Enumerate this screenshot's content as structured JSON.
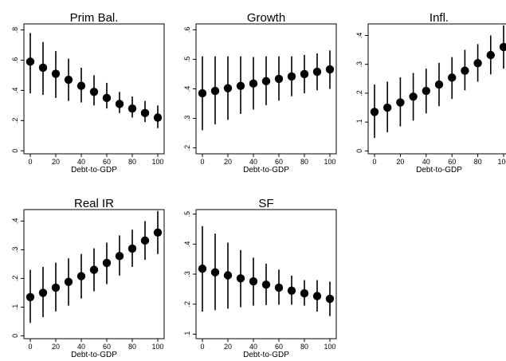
{
  "chart_data": [
    {
      "type": "scatter",
      "title": "Prim Bal.",
      "xlabel": "Debt-to-GDP",
      "ylabel": "",
      "x": [
        0,
        10,
        20,
        30,
        40,
        50,
        60,
        70,
        80,
        90,
        100
      ],
      "xticks": [
        0,
        20,
        40,
        60,
        80,
        100
      ],
      "ylim": [
        -0.02,
        0.84
      ],
      "yticks": [
        0,
        0.2,
        0.4,
        0.6,
        0.8
      ],
      "ytick_labels": [
        "0",
        ".2",
        ".4",
        ".6",
        ".8"
      ],
      "values": [
        0.59,
        0.55,
        0.51,
        0.47,
        0.43,
        0.39,
        0.35,
        0.31,
        0.28,
        0.25,
        0.22
      ],
      "ci_low": [
        0.38,
        0.37,
        0.35,
        0.33,
        0.32,
        0.3,
        0.28,
        0.25,
        0.22,
        0.19,
        0.15
      ],
      "ci_high": [
        0.78,
        0.72,
        0.66,
        0.61,
        0.55,
        0.5,
        0.45,
        0.39,
        0.36,
        0.33,
        0.3
      ]
    },
    {
      "type": "scatter",
      "title": "Growth",
      "xlabel": "Debt-to-GDP",
      "ylabel": "",
      "x": [
        0,
        10,
        20,
        30,
        40,
        50,
        60,
        70,
        80,
        90,
        100
      ],
      "xticks": [
        0,
        20,
        40,
        60,
        80,
        100
      ],
      "ylim": [
        0.18,
        0.62
      ],
      "yticks": [
        0.2,
        0.3,
        0.4,
        0.5,
        0.6
      ],
      "ytick_labels": [
        ".2",
        ".3",
        ".4",
        ".5",
        ".6"
      ],
      "values": [
        0.385,
        0.393,
        0.402,
        0.41,
        0.418,
        0.426,
        0.434,
        0.442,
        0.45,
        0.458,
        0.466
      ],
      "ci_low": [
        0.26,
        0.28,
        0.295,
        0.315,
        0.33,
        0.345,
        0.36,
        0.375,
        0.385,
        0.395,
        0.4
      ],
      "ci_high": [
        0.51,
        0.51,
        0.51,
        0.51,
        0.508,
        0.51,
        0.51,
        0.51,
        0.515,
        0.52,
        0.53
      ]
    },
    {
      "type": "scatter",
      "title": "Infl.",
      "xlabel": "Debt-to-GDP",
      "ylabel": "",
      "x": [
        0,
        10,
        20,
        30,
        40,
        50,
        60,
        70,
        80,
        90,
        100
      ],
      "xticks": [
        0,
        20,
        40,
        60,
        80,
        100
      ],
      "ylim": [
        -0.01,
        0.44
      ],
      "yticks": [
        0,
        0.1,
        0.2,
        0.3,
        0.4
      ],
      "ytick_labels": [
        "0",
        ".1",
        ".2",
        ".3",
        ".4"
      ],
      "values": [
        0.135,
        0.15,
        0.168,
        0.188,
        0.208,
        0.23,
        0.254,
        0.278,
        0.304,
        0.332,
        0.36
      ],
      "ci_low": [
        0.045,
        0.065,
        0.085,
        0.105,
        0.13,
        0.155,
        0.18,
        0.21,
        0.24,
        0.265,
        0.285
      ],
      "ci_high": [
        0.23,
        0.24,
        0.255,
        0.27,
        0.285,
        0.305,
        0.325,
        0.35,
        0.37,
        0.4,
        0.435
      ]
    },
    {
      "type": "scatter",
      "title": "Real IR",
      "xlabel": "Debt-to-GDP",
      "ylabel": "",
      "x": [
        0,
        10,
        20,
        30,
        40,
        50,
        60,
        70,
        80,
        90,
        100
      ],
      "xticks": [
        0,
        20,
        40,
        60,
        80,
        100
      ],
      "ylim": [
        -0.01,
        0.44
      ],
      "yticks": [
        0,
        0.1,
        0.2,
        0.3,
        0.4
      ],
      "ytick_labels": [
        "0",
        ".1",
        ".2",
        ".3",
        ".4"
      ],
      "values": [
        0.135,
        0.15,
        0.168,
        0.188,
        0.208,
        0.23,
        0.254,
        0.278,
        0.304,
        0.332,
        0.36
      ],
      "ci_low": [
        0.045,
        0.065,
        0.085,
        0.105,
        0.13,
        0.155,
        0.18,
        0.21,
        0.24,
        0.265,
        0.285
      ],
      "ci_high": [
        0.23,
        0.24,
        0.255,
        0.27,
        0.285,
        0.305,
        0.325,
        0.35,
        0.37,
        0.4,
        0.435
      ]
    },
    {
      "type": "scatter",
      "title": "SF",
      "xlabel": "Debt-to-GDP",
      "ylabel": "",
      "x": [
        0,
        10,
        20,
        30,
        40,
        50,
        60,
        70,
        80,
        90,
        100
      ],
      "xticks": [
        0,
        20,
        40,
        60,
        80,
        100
      ],
      "ylim": [
        0.085,
        0.515
      ],
      "yticks": [
        0.1,
        0.2,
        0.3,
        0.4,
        0.5
      ],
      "ytick_labels": [
        ".1",
        ".2",
        ".3",
        ".4",
        ".5"
      ],
      "values": [
        0.318,
        0.306,
        0.296,
        0.286,
        0.276,
        0.265,
        0.255,
        0.245,
        0.236,
        0.227,
        0.218
      ],
      "ci_low": [
        0.175,
        0.18,
        0.185,
        0.19,
        0.195,
        0.197,
        0.198,
        0.198,
        0.195,
        0.175,
        0.16
      ],
      "ci_high": [
        0.46,
        0.435,
        0.405,
        0.38,
        0.355,
        0.335,
        0.315,
        0.295,
        0.28,
        0.28,
        0.275
      ]
    }
  ],
  "colors": {
    "marker": "#000000",
    "ci_line": "#000000",
    "background": "#ffffff"
  }
}
